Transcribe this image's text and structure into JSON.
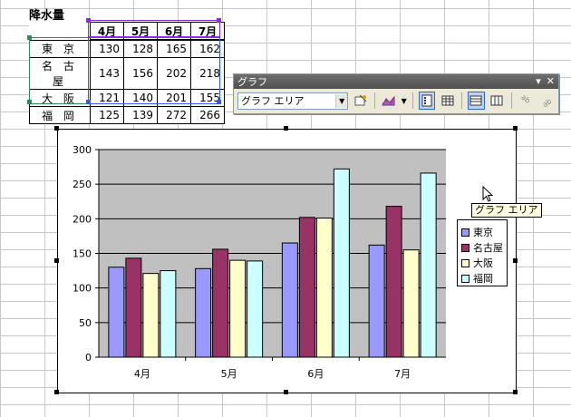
{
  "sheet": {
    "title": "降水量",
    "header_months": [
      "4月",
      "5月",
      "6月",
      "7月"
    ],
    "rows": [
      {
        "city": "東 京",
        "values": [
          130,
          128,
          165,
          162
        ]
      },
      {
        "city": "名 古 屋",
        "values": [
          143,
          156,
          202,
          218
        ]
      },
      {
        "city": "大 阪",
        "values": [
          121,
          140,
          201,
          155
        ]
      },
      {
        "city": "福 岡",
        "values": [
          125,
          139,
          272,
          266
        ]
      }
    ]
  },
  "toolbar": {
    "title": "グラフ",
    "combo_value": "グラフ エリア",
    "combo_arrow": "▼",
    "menu_arrow": "▾",
    "close": "✕",
    "icons": [
      "format-chart-area-icon",
      "chart-type-icon",
      "legend-icon",
      "data-table-icon",
      "by-row-icon",
      "by-column-icon",
      "angle-text-downward-icon",
      "angle-text-upward-icon"
    ]
  },
  "tooltip": "グラフ エリア",
  "chart_data": {
    "type": "bar",
    "categories": [
      "4月",
      "5月",
      "6月",
      "7月"
    ],
    "series": [
      {
        "name": "東京",
        "values": [
          130,
          128,
          165,
          162
        ],
        "color": "#9999ff"
      },
      {
        "name": "名古屋",
        "values": [
          143,
          156,
          202,
          218
        ],
        "color": "#993366"
      },
      {
        "name": "大阪",
        "values": [
          121,
          140,
          201,
          155
        ],
        "color": "#ffffcc"
      },
      {
        "name": "福岡",
        "values": [
          125,
          139,
          272,
          266
        ],
        "color": "#ccffff"
      }
    ],
    "ylim": [
      0,
      300
    ],
    "yticks": [
      0,
      50,
      100,
      150,
      200,
      250,
      300
    ],
    "grid": true,
    "plot_background": "#c0c0c0",
    "legend": "right"
  }
}
